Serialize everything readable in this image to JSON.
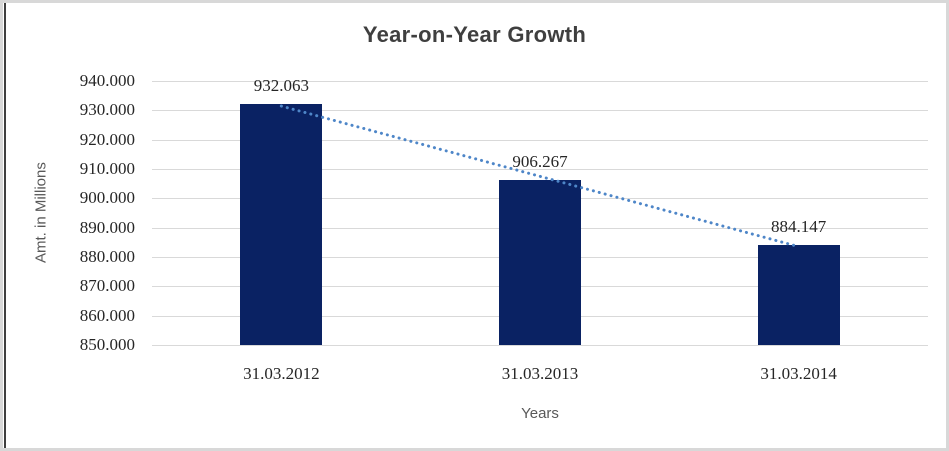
{
  "window": {
    "background": "#ffffff",
    "frame_border_color": "#d8d8d8",
    "left_line_color": "#3f3f3f"
  },
  "chart_data": {
    "type": "bar",
    "title": "Year-on-Year Growth",
    "categories": [
      "31.03.2012",
      "31.03.2013",
      "31.03.2014"
    ],
    "values": [
      932.063,
      906.267,
      884.147
    ],
    "data_labels": [
      "932.063",
      "906.267",
      "884.147"
    ],
    "xlabel": "Years",
    "ylabel": "Amt. in Millions",
    "ylim": [
      850,
      940
    ],
    "ytick_step": 10,
    "yticks": [
      {
        "value": 940,
        "label": "940.000"
      },
      {
        "value": 930,
        "label": "930.000"
      },
      {
        "value": 920,
        "label": "920.000"
      },
      {
        "value": 910,
        "label": "910.000"
      },
      {
        "value": 900,
        "label": "900.000"
      },
      {
        "value": 890,
        "label": "890.000"
      },
      {
        "value": 880,
        "label": "880.000"
      },
      {
        "value": 870,
        "label": "870.000"
      },
      {
        "value": 860,
        "label": "860.000"
      },
      {
        "value": 850,
        "label": "850.000"
      }
    ],
    "grid": true,
    "legend_position": "none",
    "trendline": {
      "type": "linear",
      "style": "dotted"
    },
    "colors": {
      "bar": "#0a2263",
      "trendline": "#4e86c8",
      "gridline": "#d9d9d9",
      "title_text": "#3f3f3f",
      "tick_text": "#262626",
      "axis_title_text": "#595959"
    }
  }
}
